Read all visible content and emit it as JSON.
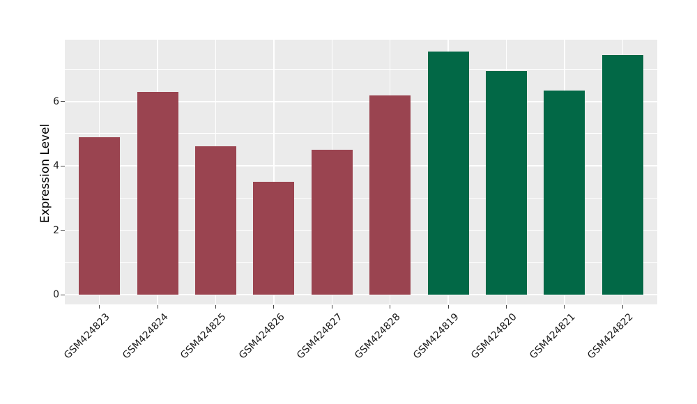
{
  "figure": {
    "background_color": "#ffffff",
    "panel_color": "#ebebeb",
    "grid_color": "#ffffff",
    "tick_color": "#444444",
    "text_color": "#1a1a1a"
  },
  "chart_data": {
    "type": "bar",
    "title": "",
    "xlabel": "",
    "ylabel": "Expression Level",
    "categories": [
      "GSM424823",
      "GSM424824",
      "GSM424825",
      "GSM424826",
      "GSM424827",
      "GSM424828",
      "GSM424819",
      "GSM424820",
      "GSM424821",
      "GSM424822"
    ],
    "values": [
      4.9,
      6.3,
      4.6,
      3.5,
      4.5,
      6.2,
      7.55,
      6.95,
      6.35,
      7.45
    ],
    "bar_colors": [
      "#9a4450",
      "#9a4450",
      "#9a4450",
      "#9a4450",
      "#9a4450",
      "#9a4450",
      "#026846",
      "#026846",
      "#026846",
      "#026846"
    ],
    "groups": [
      {
        "color": "#9a4450",
        "categories": [
          "GSM424823",
          "GSM424824",
          "GSM424825",
          "GSM424826",
          "GSM424827",
          "GSM424828"
        ]
      },
      {
        "color": "#026846",
        "categories": [
          "GSM424819",
          "GSM424820",
          "GSM424821",
          "GSM424822"
        ]
      }
    ],
    "yticks": [
      0,
      2,
      4,
      6
    ],
    "minor_yticks": [
      1,
      3,
      5,
      7
    ],
    "ylim": [
      -0.3,
      7.92
    ],
    "x_tick_rotation": 45,
    "grid": "on",
    "legend": "none"
  }
}
